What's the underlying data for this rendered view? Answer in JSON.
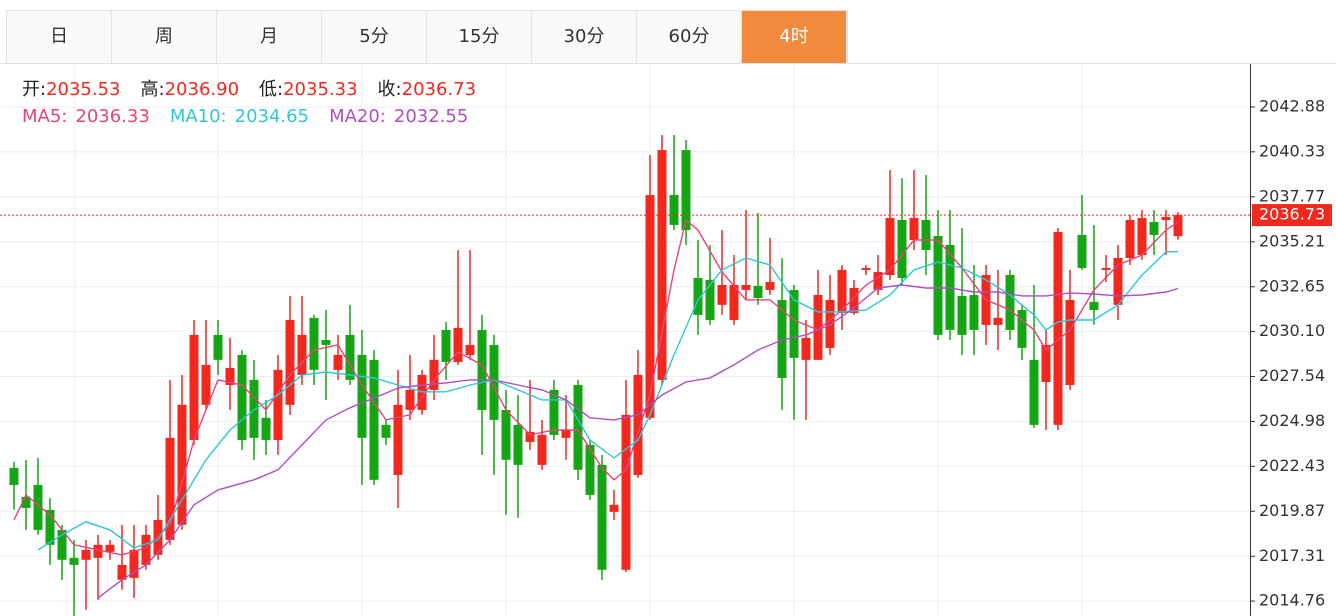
{
  "tabs": {
    "items": [
      "日",
      "周",
      "月",
      "5分",
      "15分",
      "30分",
      "60分",
      "4时"
    ],
    "active": 7
  },
  "info": [
    {
      "label": "开:",
      "text": "2035.53"
    },
    {
      "label": "高:",
      "text": "2036.90"
    },
    {
      "label": "低:",
      "text": "2035.33"
    },
    {
      "label": "收:",
      "text": "2036.73"
    }
  ],
  "chart_data": {
    "type": "candlestick",
    "up_color": "#f0281e",
    "down_color": "#15a515",
    "grid": true,
    "ylim": [
      2013.91,
      2045.33
    ],
    "yticks": [
      2014.76,
      2017.31,
      2019.87,
      2022.43,
      2024.98,
      2027.54,
      {
        "value": 2030.1,
        "label": "2030.10"
      },
      2032.65,
      2035.21,
      2037.77,
      2040.33,
      2042.88
    ],
    "last_price": {
      "value": 2036.73,
      "label": "2036.73",
      "color": "#f0281e"
    },
    "candles": [
      [
        2022.34,
        2022.68,
        2019.95,
        2021.37
      ],
      [
        2020.69,
        2022.8,
        2018.81,
        2020.06
      ],
      [
        2021.37,
        2022.91,
        2018.53,
        2018.81
      ],
      [
        2019.95,
        2020.63,
        2016.82,
        2017.96
      ],
      [
        2018.81,
        2019.1,
        2015.97,
        2017.11
      ],
      [
        2017.22,
        2018.24,
        2013.92,
        2016.82
      ],
      [
        2017.11,
        2018.24,
        2014.26,
        2017.67
      ],
      [
        2017.22,
        2018.53,
        2014.83,
        2017.96
      ],
      [
        2017.56,
        2018.24,
        2017.11,
        2017.96
      ],
      [
        2015.97,
        2019.1,
        2015.4,
        2016.82
      ],
      [
        2016.08,
        2019.1,
        2014.94,
        2017.67
      ],
      [
        2016.82,
        2019.1,
        2016.54,
        2018.53
      ],
      [
        2017.39,
        2020.8,
        2017.11,
        2019.38
      ],
      [
        2018.24,
        2027.35,
        2017.96,
        2024.05
      ],
      [
        2019.1,
        2027.63,
        2018.81,
        2025.93
      ],
      [
        2023.93,
        2030.76,
        2023.65,
        2029.91
      ],
      [
        2025.93,
        2030.76,
        2025.64,
        2028.2
      ],
      [
        2029.91,
        2030.76,
        2027.63,
        2028.49
      ],
      [
        2027.06,
        2029.74,
        2025.64,
        2028.03
      ],
      [
        2028.77,
        2029.05,
        2023.36,
        2023.93
      ],
      [
        2027.35,
        2028.49,
        2022.8,
        2024.05
      ],
      [
        2025.19,
        2026.21,
        2023.08,
        2023.93
      ],
      [
        2023.93,
        2028.77,
        2023.08,
        2027.92
      ],
      [
        2025.93,
        2032.13,
        2025.36,
        2030.76
      ],
      [
        2027.63,
        2032.13,
        2027.06,
        2029.91
      ],
      [
        2030.88,
        2031.05,
        2027.06,
        2027.92
      ],
      [
        2029.62,
        2031.33,
        2026.21,
        2029.34
      ],
      [
        2027.92,
        2029.91,
        2027.35,
        2028.77
      ],
      [
        2029.91,
        2031.62,
        2027.06,
        2027.35
      ],
      [
        2028.77,
        2030.19,
        2021.37,
        2024.05
      ],
      [
        2028.49,
        2029.05,
        2021.37,
        2021.66
      ],
      [
        2024.79,
        2025.07,
        2023.65,
        2024.05
      ],
      [
        2021.94,
        2027.92,
        2020.06,
        2025.93
      ],
      [
        2025.64,
        2028.77,
        2025.07,
        2026.78
      ],
      [
        2025.64,
        2027.92,
        2025.36,
        2027.63
      ],
      [
        2026.78,
        2029.91,
        2026.21,
        2028.49
      ],
      [
        2030.19,
        2030.65,
        2027.35,
        2028.37
      ],
      [
        2028.37,
        2034.74,
        2028.2,
        2030.31
      ],
      [
        2028.77,
        2034.74,
        2028.49,
        2029.34
      ],
      [
        2030.19,
        2031.05,
        2023.08,
        2025.64
      ],
      [
        2029.34,
        2029.91,
        2021.94,
        2025.07
      ],
      [
        2025.64,
        2026.78,
        2019.67,
        2022.8
      ],
      [
        2024.79,
        2026.49,
        2019.5,
        2022.51
      ],
      [
        2023.82,
        2027.35,
        2023.36,
        2024.39
      ],
      [
        2022.51,
        2025.07,
        2022.23,
        2024.22
      ],
      [
        2026.78,
        2027.35,
        2023.93,
        2024.22
      ],
      [
        2024.05,
        2026.49,
        2022.8,
        2024.5
      ],
      [
        2027.06,
        2027.35,
        2021.66,
        2022.23
      ],
      [
        2023.65,
        2023.93,
        2020.52,
        2020.8
      ],
      [
        2022.51,
        2023.08,
        2015.97,
        2016.54
      ],
      [
        2019.84,
        2021.09,
        2019.38,
        2020.24
      ],
      [
        2016.54,
        2027.35,
        2016.42,
        2025.36
      ],
      [
        2021.94,
        2029.05,
        2021.77,
        2027.63
      ],
      [
        2025.19,
        2040.15,
        2025.07,
        2037.87
      ],
      [
        2027.35,
        2041.29,
        2027.06,
        2040.43
      ],
      [
        2037.87,
        2041.29,
        2035.88,
        2036.17
      ],
      [
        2040.43,
        2041.0,
        2035.03,
        2035.88
      ],
      [
        2033.15,
        2035.31,
        2029.91,
        2031.05
      ],
      [
        2033.04,
        2035.03,
        2030.48,
        2030.76
      ],
      [
        2031.62,
        2035.88,
        2031.05,
        2032.75
      ],
      [
        2030.76,
        2034.46,
        2030.48,
        2032.75
      ],
      [
        2032.47,
        2037.02,
        2031.9,
        2032.75
      ],
      [
        2032.7,
        2036.85,
        2031.62,
        2032.01
      ],
      [
        2032.47,
        2035.43,
        2032.18,
        2032.92
      ],
      [
        2031.9,
        2034.29,
        2025.64,
        2027.46
      ],
      [
        2032.47,
        2032.75,
        2025.07,
        2028.6
      ],
      [
        2028.49,
        2030.76,
        2025.07,
        2029.74
      ],
      [
        2028.49,
        2033.61,
        2028.49,
        2032.18
      ],
      [
        2029.17,
        2033.32,
        2028.77,
        2031.9
      ],
      [
        2031.16,
        2033.89,
        2030.19,
        2033.61
      ],
      [
        2031.16,
        2033.04,
        2031.05,
        2032.58
      ],
      [
        2033.61,
        2033.89,
        2033.32,
        2033.72
      ],
      [
        2032.47,
        2034.46,
        2032.18,
        2033.49
      ],
      [
        2033.32,
        2039.3,
        2033.04,
        2036.57
      ],
      [
        2036.45,
        2038.84,
        2032.75,
        2033.15
      ],
      [
        2035.31,
        2039.3,
        2034.74,
        2036.57
      ],
      [
        2036.45,
        2039.01,
        2033.32,
        2034.74
      ],
      [
        2035.54,
        2037.02,
        2029.62,
        2029.91
      ],
      [
        2035.03,
        2037.02,
        2029.62,
        2030.19
      ],
      [
        2032.13,
        2036.0,
        2028.77,
        2029.91
      ],
      [
        2032.18,
        2033.89,
        2028.77,
        2030.19
      ],
      [
        2030.48,
        2033.89,
        2029.34,
        2033.32
      ],
      [
        2030.48,
        2033.61,
        2029.05,
        2030.88
      ],
      [
        2033.32,
        2033.61,
        2029.62,
        2030.19
      ],
      [
        2031.33,
        2031.62,
        2028.49,
        2029.17
      ],
      [
        2028.49,
        2032.75,
        2024.62,
        2024.79
      ],
      [
        2027.23,
        2030.19,
        2024.5,
        2029.34
      ],
      [
        2024.79,
        2036.0,
        2024.5,
        2035.77
      ],
      [
        2027.06,
        2033.61,
        2026.78,
        2031.9
      ],
      [
        2035.6,
        2037.87,
        2033.61,
        2033.72
      ],
      [
        2031.79,
        2036.17,
        2030.48,
        2031.33
      ],
      [
        2033.61,
        2034.46,
        2032.92,
        2033.72
      ],
      [
        2031.62,
        2035.03,
        2030.76,
        2034.29
      ],
      [
        2034.29,
        2036.74,
        2033.89,
        2036.45
      ],
      [
        2034.46,
        2037.02,
        2034.18,
        2036.57
      ],
      [
        2036.34,
        2037.02,
        2034.46,
        2035.6
      ],
      [
        2036.45,
        2037.02,
        2034.46,
        2036.62
      ],
      [
        2035.53,
        2036.9,
        2035.33,
        2036.73
      ]
    ],
    "series": [
      {
        "name": "MA5:",
        "value_label": "2036.33",
        "color": "#e8437a",
        "x": [
          0,
          1,
          3,
          5,
          7,
          9,
          11,
          13,
          15,
          17,
          19,
          21,
          23,
          25,
          27,
          29,
          31,
          33,
          35,
          37,
          39,
          41,
          43,
          45,
          47,
          49,
          50,
          51,
          53,
          55,
          56,
          57,
          59,
          61,
          63,
          65,
          67,
          69,
          71,
          73,
          75,
          77,
          79,
          81,
          83,
          85,
          86,
          88,
          90,
          92,
          94,
          96,
          97
        ],
        "values": [
          2019.38,
          2020.8,
          2019.67,
          2017.96,
          2017.67,
          2017.39,
          2017.79,
          2019.1,
          2023.93,
          2027.35,
          2027.06,
          2025.64,
          2027.63,
          2029.05,
          2029.34,
          2027.06,
          2025.07,
          2025.36,
          2027.35,
          2028.94,
          2028.2,
          2025.64,
          2024.22,
          2024.5,
          2024.5,
          2022.34,
          2021.66,
          2022.23,
          2026.49,
          2033.61,
          2036.45,
          2035.88,
          2033.49,
          2031.9,
          2031.9,
          2030.76,
          2030.19,
          2031.33,
          2032.75,
          2033.61,
          2035.31,
          2035.31,
          2033.72,
          2031.9,
          2031.33,
          2030.19,
          2029.05,
          2030.19,
          2032.47,
          2033.89,
          2034.46,
          2035.88,
          2036.33
        ]
      },
      {
        "name": "MA10:",
        "value_label": "2034.65",
        "color": "#30c6d6",
        "x": [
          2,
          4,
          6,
          8,
          10,
          12,
          14,
          16,
          18,
          20,
          22,
          24,
          26,
          28,
          30,
          32,
          34,
          36,
          38,
          40,
          42,
          44,
          46,
          48,
          50,
          52,
          53,
          55,
          57,
          59,
          61,
          63,
          65,
          67,
          69,
          71,
          73,
          75,
          77,
          79,
          81,
          83,
          85,
          86,
          87,
          88,
          90,
          92,
          94,
          96,
          97
        ],
        "values": [
          2017.67,
          2018.53,
          2019.27,
          2018.81,
          2017.79,
          2018.24,
          2020.52,
          2022.8,
          2024.5,
          2025.64,
          2026.49,
          2027.63,
          2027.8,
          2027.63,
          2027.46,
          2027.06,
          2026.67,
          2026.67,
          2027.06,
          2027.35,
          2026.78,
          2026.21,
          2026.21,
          2023.93,
          2022.91,
          2023.93,
          2025.36,
          2028.77,
          2031.9,
          2033.61,
          2034.29,
          2033.89,
          2031.9,
          2031.22,
          2031.22,
          2031.33,
          2032.18,
          2033.61,
          2034.06,
          2033.72,
          2033.04,
          2032.18,
          2031.05,
          2030.19,
          2030.65,
          2030.76,
          2030.76,
          2031.62,
          2033.32,
          2034.63,
          2034.65
        ]
      },
      {
        "name": "MA20:",
        "value_label": "2032.55",
        "color": "#b04ec2",
        "x": [
          7,
          9,
          11,
          13,
          15,
          17,
          20,
          22,
          24,
          26,
          28,
          30,
          32,
          34,
          36,
          38,
          40,
          42,
          44,
          46,
          48,
          50,
          52,
          54,
          56,
          58,
          60,
          62,
          64,
          66,
          68,
          70,
          72,
          74,
          76,
          78,
          80,
          82,
          84,
          86,
          88,
          90,
          92,
          94,
          96,
          97
        ],
        "values": [
          2014.94,
          2015.97,
          2016.82,
          2018.24,
          2020.24,
          2021.09,
          2021.66,
          2022.23,
          2023.65,
          2025.07,
          2025.76,
          2026.32,
          2026.89,
          2027.06,
          2027.18,
          2027.35,
          2027.35,
          2027.06,
          2026.78,
          2026.21,
          2025.19,
          2025.07,
          2025.36,
          2026.49,
          2027.23,
          2027.46,
          2028.2,
          2029.05,
          2029.62,
          2029.91,
          2030.48,
          2031.45,
          2032.58,
          2032.75,
          2032.58,
          2032.58,
          2032.35,
          2032.35,
          2032.13,
          2032.13,
          2032.3,
          2032.24,
          2032.13,
          2032.18,
          2032.35,
          2032.55
        ]
      }
    ]
  }
}
